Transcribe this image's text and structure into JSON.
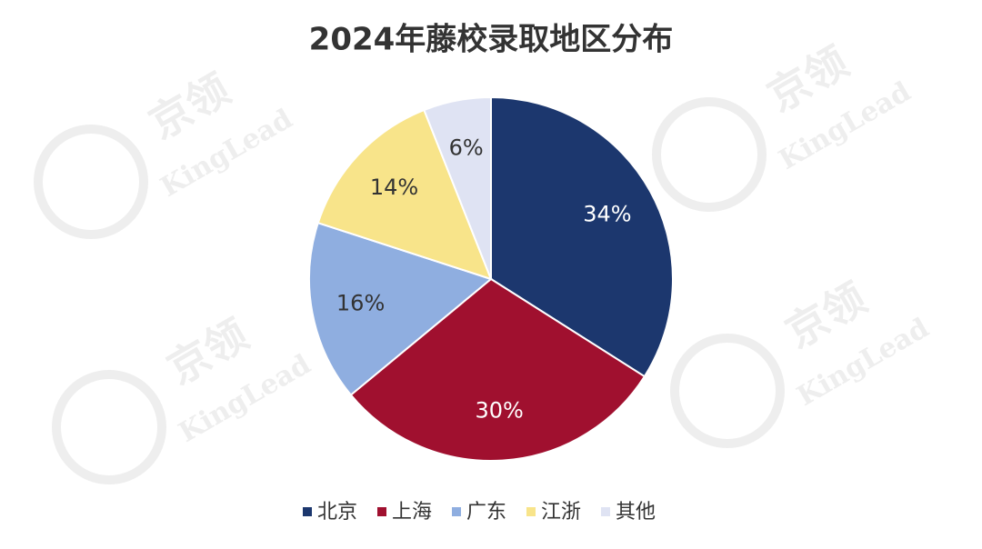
{
  "chart_data": {
    "type": "pie",
    "title": "2024年藤校录取地区分布",
    "categories": [
      "北京",
      "上海",
      "广东",
      "江浙",
      "其他"
    ],
    "values": [
      34,
      30,
      16,
      14,
      6
    ],
    "value_labels": [
      "34%",
      "30%",
      "16%",
      "14%",
      "6%"
    ],
    "colors": [
      "#1c376e",
      "#a0102f",
      "#8faee0",
      "#f8e48a",
      "#dfe3f3"
    ],
    "legend": "bottom"
  },
  "watermark": {
    "brand": "京领",
    "latin": "KingLead"
  }
}
